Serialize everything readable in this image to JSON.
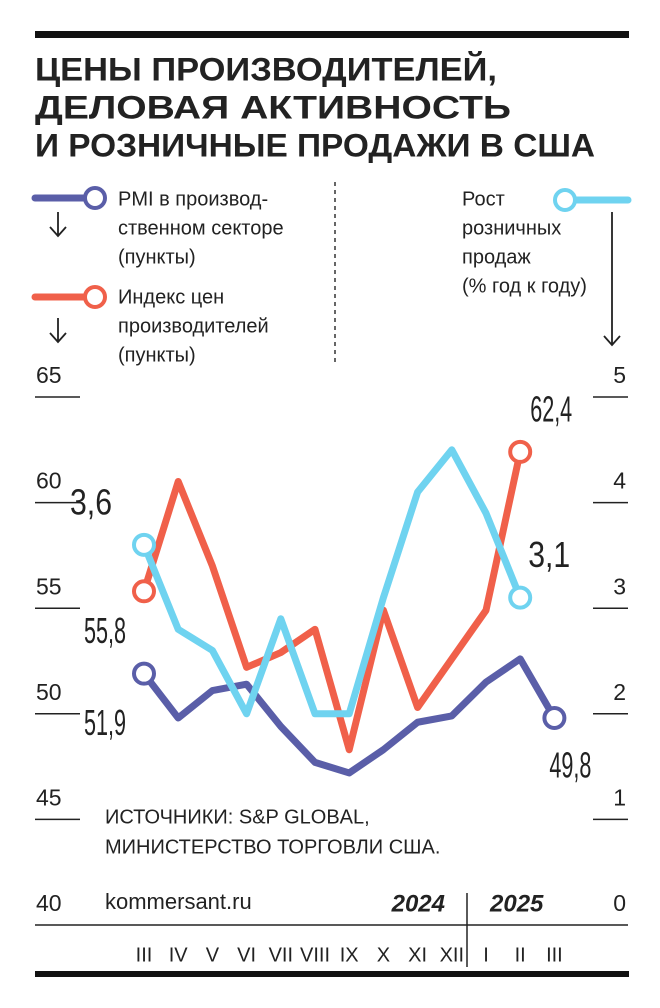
{
  "chart_data": {
    "type": "line",
    "title": [
      "ЦЕНЫ ПРОИЗВОДИТЕЛЕЙ,",
      "ДЕЛОВАЯ АКТИВНОСТЬ",
      "И РОЗНИЧНЫЕ ПРОДАЖИ В США"
    ],
    "categories": [
      "III",
      "IV",
      "V",
      "VI",
      "VII",
      "VIII",
      "IX",
      "X",
      "XI",
      "XII",
      "I",
      "II",
      "III"
    ],
    "years": [
      "2024",
      "2025"
    ],
    "series": [
      {
        "name": [
          "PMI в производ-",
          "ственном секторе",
          "(пункты)"
        ],
        "color": "#5a5ea8",
        "axis": "y",
        "values": [
          51.9,
          49.8,
          51.1,
          51.4,
          49.4,
          47.7,
          47.2,
          48.3,
          49.6,
          49.9,
          51.5,
          52.6,
          49.8
        ],
        "value_labels": [
          "51,9",
          null,
          null,
          null,
          null,
          null,
          null,
          null,
          null,
          null,
          null,
          null,
          "49,8"
        ]
      },
      {
        "name": [
          "Индекс цен",
          "производителей",
          "(пункты)"
        ],
        "color": "#f0604a",
        "axis": "y",
        "values": [
          55.8,
          61.0,
          57.0,
          52.2,
          52.9,
          54.0,
          48.3,
          54.9,
          50.3,
          52.6,
          54.9,
          62.4,
          null
        ],
        "value_labels": [
          "55,8",
          null,
          null,
          null,
          null,
          null,
          null,
          null,
          null,
          null,
          null,
          "62,4",
          null
        ]
      },
      {
        "name": [
          "Рост",
          "розничных",
          "продаж",
          "(% год к году)"
        ],
        "color": "#6fd3f0",
        "axis": "y2",
        "values": [
          3.6,
          2.8,
          2.6,
          2.0,
          2.9,
          2.0,
          2.0,
          3.1,
          4.1,
          4.5,
          3.9,
          3.1,
          null
        ],
        "value_labels": [
          "3,6",
          null,
          null,
          null,
          null,
          null,
          null,
          null,
          null,
          null,
          null,
          "3,1",
          null
        ]
      }
    ],
    "ylim": [
      40,
      65
    ],
    "yticks": [
      40,
      45,
      50,
      55,
      60,
      65
    ],
    "y2lim": [
      0,
      5
    ],
    "y2ticks": [
      0,
      1,
      2,
      3,
      4,
      5
    ],
    "source": [
      "ИСТОЧНИКИ: S&P GLOBAL,",
      "МИНИСТЕРСТВО ТОРГОВЛИ США."
    ],
    "site": "kommersant.ru"
  }
}
